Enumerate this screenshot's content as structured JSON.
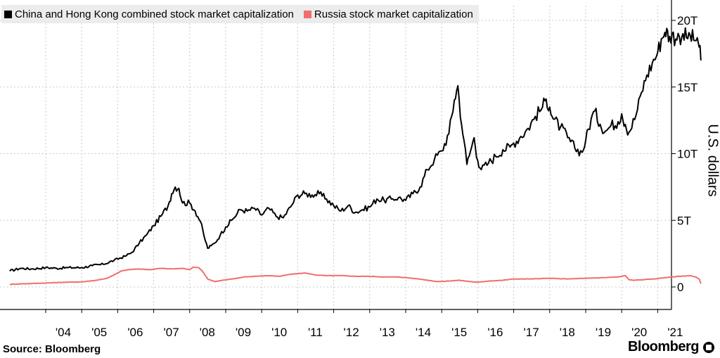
{
  "chart_data": {
    "type": "line",
    "title": "",
    "xlabel": "",
    "ylabel": "U.S. dollars",
    "x_tick_labels": [
      "'04",
      "'05",
      "'06",
      "'07",
      "'08",
      "'09",
      "'10",
      "'11",
      "'12",
      "'13",
      "'14",
      "'15",
      "'16",
      "'17",
      "'18",
      "'19",
      "'20",
      "'21"
    ],
    "y_tick_labels": [
      "0",
      "5T",
      "10T",
      "15T",
      "20T"
    ],
    "y_tick_values": [
      0,
      5,
      10,
      15,
      20
    ],
    "ylim": [
      -1.6,
      20.9
    ],
    "xlim": [
      2003.0,
      2021.75
    ],
    "grid": true,
    "legend_placement": "top-left",
    "series": [
      {
        "name": "China and Hong Kong combined stock market capitalization",
        "color": "#000000",
        "points": [
          [
            2003.0,
            1.2
          ],
          [
            2003.3,
            1.4
          ],
          [
            2003.6,
            1.35
          ],
          [
            2004.0,
            1.45
          ],
          [
            2004.3,
            1.4
          ],
          [
            2004.6,
            1.45
          ],
          [
            2005.0,
            1.45
          ],
          [
            2005.3,
            1.6
          ],
          [
            2005.6,
            1.7
          ],
          [
            2005.9,
            2.0
          ],
          [
            2006.2,
            2.3
          ],
          [
            2006.4,
            2.6
          ],
          [
            2006.6,
            3.3
          ],
          [
            2006.8,
            3.9
          ],
          [
            2007.0,
            4.6
          ],
          [
            2007.2,
            5.3
          ],
          [
            2007.4,
            6.1
          ],
          [
            2007.5,
            7.0
          ],
          [
            2007.6,
            7.5
          ],
          [
            2007.7,
            7.4
          ],
          [
            2007.8,
            6.3
          ],
          [
            2008.0,
            6.3
          ],
          [
            2008.15,
            5.7
          ],
          [
            2008.3,
            4.9
          ],
          [
            2008.4,
            3.8
          ],
          [
            2008.5,
            2.9
          ],
          [
            2008.6,
            3.1
          ],
          [
            2008.7,
            3.3
          ],
          [
            2008.85,
            3.9
          ],
          [
            2009.0,
            4.5
          ],
          [
            2009.2,
            5.1
          ],
          [
            2009.4,
            5.8
          ],
          [
            2009.6,
            5.7
          ],
          [
            2009.8,
            5.9
          ],
          [
            2010.0,
            5.4
          ],
          [
            2010.2,
            5.9
          ],
          [
            2010.4,
            5.3
          ],
          [
            2010.6,
            5.2
          ],
          [
            2010.8,
            6.0
          ],
          [
            2011.0,
            6.9
          ],
          [
            2011.2,
            7.0
          ],
          [
            2011.4,
            6.9
          ],
          [
            2011.6,
            7.0
          ],
          [
            2011.8,
            6.6
          ],
          [
            2012.0,
            6.1
          ],
          [
            2012.2,
            5.7
          ],
          [
            2012.4,
            6.1
          ],
          [
            2012.6,
            5.6
          ],
          [
            2012.8,
            5.8
          ],
          [
            2013.0,
            6.0
          ],
          [
            2013.2,
            6.6
          ],
          [
            2013.4,
            6.5
          ],
          [
            2013.6,
            6.6
          ],
          [
            2013.8,
            6.7
          ],
          [
            2014.0,
            6.5
          ],
          [
            2014.2,
            7.0
          ],
          [
            2014.4,
            7.5
          ],
          [
            2014.6,
            8.8
          ],
          [
            2014.8,
            9.6
          ],
          [
            2015.0,
            10.2
          ],
          [
            2015.2,
            11.5
          ],
          [
            2015.35,
            14.0
          ],
          [
            2015.45,
            15.1
          ],
          [
            2015.55,
            12.2
          ],
          [
            2015.62,
            11.0
          ],
          [
            2015.7,
            9.2
          ],
          [
            2015.8,
            10.2
          ],
          [
            2015.9,
            11.2
          ],
          [
            2016.0,
            9.5
          ],
          [
            2016.1,
            8.8
          ],
          [
            2016.3,
            9.3
          ],
          [
            2016.5,
            9.8
          ],
          [
            2016.7,
            10.3
          ],
          [
            2016.9,
            10.5
          ],
          [
            2017.0,
            10.8
          ],
          [
            2017.2,
            11.3
          ],
          [
            2017.4,
            11.9
          ],
          [
            2017.6,
            12.8
          ],
          [
            2017.8,
            13.5
          ],
          [
            2017.9,
            14.1
          ],
          [
            2018.0,
            13.5
          ],
          [
            2018.1,
            12.6
          ],
          [
            2018.3,
            12.0
          ],
          [
            2018.5,
            11.2
          ],
          [
            2018.7,
            10.4
          ],
          [
            2018.9,
            10.1
          ],
          [
            2019.0,
            11.0
          ],
          [
            2019.15,
            12.6
          ],
          [
            2019.25,
            13.2
          ],
          [
            2019.4,
            12.2
          ],
          [
            2019.55,
            11.7
          ],
          [
            2019.7,
            12.1
          ],
          [
            2019.9,
            12.4
          ],
          [
            2020.0,
            13.0
          ],
          [
            2020.1,
            12.2
          ],
          [
            2020.2,
            11.6
          ],
          [
            2020.4,
            12.9
          ],
          [
            2020.55,
            14.6
          ],
          [
            2020.7,
            15.9
          ],
          [
            2020.85,
            16.8
          ],
          [
            2021.0,
            17.6
          ],
          [
            2021.1,
            18.6
          ],
          [
            2021.2,
            19.1
          ],
          [
            2021.25,
            19.4
          ],
          [
            2021.3,
            18.4
          ],
          [
            2021.4,
            19.0
          ],
          [
            2021.5,
            18.6
          ],
          [
            2021.6,
            18.8
          ],
          [
            2021.7,
            19.0
          ],
          [
            2021.8,
            18.7
          ],
          [
            2021.9,
            18.9
          ],
          [
            2022.0,
            18.5
          ],
          [
            2022.1,
            18.7
          ],
          [
            2022.15,
            18.0
          ],
          [
            2022.2,
            17.0
          ]
        ]
      },
      {
        "name": "Russia stock market capitalization",
        "color": "#f26d6d",
        "points": [
          [
            2003.0,
            0.2
          ],
          [
            2003.5,
            0.25
          ],
          [
            2004.0,
            0.3
          ],
          [
            2004.5,
            0.35
          ],
          [
            2005.0,
            0.38
          ],
          [
            2005.4,
            0.5
          ],
          [
            2005.7,
            0.65
          ],
          [
            2005.9,
            0.9
          ],
          [
            2006.1,
            1.2
          ],
          [
            2006.3,
            1.3
          ],
          [
            2006.6,
            1.35
          ],
          [
            2006.9,
            1.3
          ],
          [
            2007.2,
            1.4
          ],
          [
            2007.5,
            1.35
          ],
          [
            2007.8,
            1.4
          ],
          [
            2008.0,
            1.3
          ],
          [
            2008.1,
            1.5
          ],
          [
            2008.25,
            1.45
          ],
          [
            2008.35,
            1.2
          ],
          [
            2008.5,
            0.6
          ],
          [
            2008.7,
            0.4
          ],
          [
            2008.9,
            0.5
          ],
          [
            2009.2,
            0.6
          ],
          [
            2009.5,
            0.75
          ],
          [
            2009.8,
            0.8
          ],
          [
            2010.2,
            0.85
          ],
          [
            2010.5,
            0.8
          ],
          [
            2010.8,
            0.95
          ],
          [
            2011.0,
            1.0
          ],
          [
            2011.2,
            1.05
          ],
          [
            2011.5,
            0.9
          ],
          [
            2011.8,
            0.85
          ],
          [
            2012.2,
            0.85
          ],
          [
            2012.6,
            0.8
          ],
          [
            2013.0,
            0.8
          ],
          [
            2013.4,
            0.75
          ],
          [
            2013.8,
            0.75
          ],
          [
            2014.0,
            0.7
          ],
          [
            2014.2,
            0.65
          ],
          [
            2014.5,
            0.55
          ],
          [
            2014.9,
            0.4
          ],
          [
            2015.2,
            0.45
          ],
          [
            2015.5,
            0.5
          ],
          [
            2015.8,
            0.4
          ],
          [
            2016.0,
            0.35
          ],
          [
            2016.3,
            0.45
          ],
          [
            2016.7,
            0.5
          ],
          [
            2017.0,
            0.6
          ],
          [
            2017.5,
            0.6
          ],
          [
            2018.0,
            0.65
          ],
          [
            2018.5,
            0.6
          ],
          [
            2019.0,
            0.65
          ],
          [
            2019.5,
            0.7
          ],
          [
            2019.9,
            0.75
          ],
          [
            2020.0,
            0.8
          ],
          [
            2020.1,
            0.85
          ],
          [
            2020.2,
            0.55
          ],
          [
            2020.35,
            0.5
          ],
          [
            2020.6,
            0.55
          ],
          [
            2020.9,
            0.6
          ],
          [
            2021.2,
            0.7
          ],
          [
            2021.6,
            0.8
          ],
          [
            2021.9,
            0.85
          ],
          [
            2022.05,
            0.75
          ],
          [
            2022.15,
            0.6
          ],
          [
            2022.2,
            0.25
          ]
        ]
      }
    ]
  },
  "legend": {
    "items": [
      {
        "label": "China and Hong Kong combined stock market capitalization",
        "color": "#000000"
      },
      {
        "label": "Russia stock market capitalization",
        "color": "#f26d6d"
      }
    ]
  },
  "footer": {
    "source": "Source: Bloomberg",
    "brand": "Bloomberg"
  }
}
